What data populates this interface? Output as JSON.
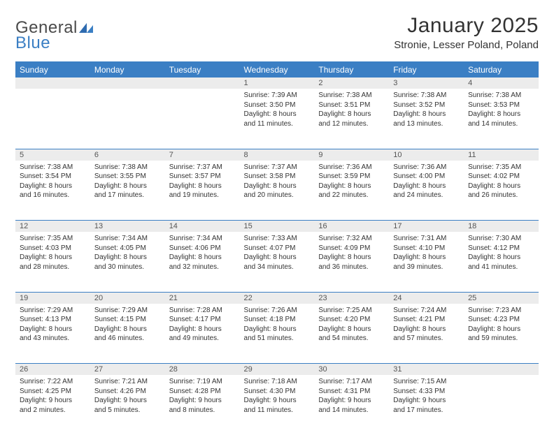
{
  "logo": {
    "part1": "General",
    "part2": "Blue"
  },
  "title": "January 2025",
  "location": "Stronie, Lesser Poland, Poland",
  "colors": {
    "header_bg": "#3b7fc4",
    "header_text": "#ffffff",
    "daynum_bg": "#ececec",
    "border": "#3b7fc4",
    "text": "#333333",
    "page_bg": "#ffffff"
  },
  "fonts": {
    "base": "Arial",
    "title_size": 30,
    "location_size": 15,
    "dayhdr_size": 12,
    "body_size": 10
  },
  "day_headers": [
    "Sunday",
    "Monday",
    "Tuesday",
    "Wednesday",
    "Thursday",
    "Friday",
    "Saturday"
  ],
  "weeks": [
    [
      null,
      null,
      null,
      {
        "n": "1",
        "sunrise": "7:39 AM",
        "sunset": "3:50 PM",
        "dl1": "Daylight: 8 hours",
        "dl2": "and 11 minutes."
      },
      {
        "n": "2",
        "sunrise": "7:38 AM",
        "sunset": "3:51 PM",
        "dl1": "Daylight: 8 hours",
        "dl2": "and 12 minutes."
      },
      {
        "n": "3",
        "sunrise": "7:38 AM",
        "sunset": "3:52 PM",
        "dl1": "Daylight: 8 hours",
        "dl2": "and 13 minutes."
      },
      {
        "n": "4",
        "sunrise": "7:38 AM",
        "sunset": "3:53 PM",
        "dl1": "Daylight: 8 hours",
        "dl2": "and 14 minutes."
      }
    ],
    [
      {
        "n": "5",
        "sunrise": "7:38 AM",
        "sunset": "3:54 PM",
        "dl1": "Daylight: 8 hours",
        "dl2": "and 16 minutes."
      },
      {
        "n": "6",
        "sunrise": "7:38 AM",
        "sunset": "3:55 PM",
        "dl1": "Daylight: 8 hours",
        "dl2": "and 17 minutes."
      },
      {
        "n": "7",
        "sunrise": "7:37 AM",
        "sunset": "3:57 PM",
        "dl1": "Daylight: 8 hours",
        "dl2": "and 19 minutes."
      },
      {
        "n": "8",
        "sunrise": "7:37 AM",
        "sunset": "3:58 PM",
        "dl1": "Daylight: 8 hours",
        "dl2": "and 20 minutes."
      },
      {
        "n": "9",
        "sunrise": "7:36 AM",
        "sunset": "3:59 PM",
        "dl1": "Daylight: 8 hours",
        "dl2": "and 22 minutes."
      },
      {
        "n": "10",
        "sunrise": "7:36 AM",
        "sunset": "4:00 PM",
        "dl1": "Daylight: 8 hours",
        "dl2": "and 24 minutes."
      },
      {
        "n": "11",
        "sunrise": "7:35 AM",
        "sunset": "4:02 PM",
        "dl1": "Daylight: 8 hours",
        "dl2": "and 26 minutes."
      }
    ],
    [
      {
        "n": "12",
        "sunrise": "7:35 AM",
        "sunset": "4:03 PM",
        "dl1": "Daylight: 8 hours",
        "dl2": "and 28 minutes."
      },
      {
        "n": "13",
        "sunrise": "7:34 AM",
        "sunset": "4:05 PM",
        "dl1": "Daylight: 8 hours",
        "dl2": "and 30 minutes."
      },
      {
        "n": "14",
        "sunrise": "7:34 AM",
        "sunset": "4:06 PM",
        "dl1": "Daylight: 8 hours",
        "dl2": "and 32 minutes."
      },
      {
        "n": "15",
        "sunrise": "7:33 AM",
        "sunset": "4:07 PM",
        "dl1": "Daylight: 8 hours",
        "dl2": "and 34 minutes."
      },
      {
        "n": "16",
        "sunrise": "7:32 AM",
        "sunset": "4:09 PM",
        "dl1": "Daylight: 8 hours",
        "dl2": "and 36 minutes."
      },
      {
        "n": "17",
        "sunrise": "7:31 AM",
        "sunset": "4:10 PM",
        "dl1": "Daylight: 8 hours",
        "dl2": "and 39 minutes."
      },
      {
        "n": "18",
        "sunrise": "7:30 AM",
        "sunset": "4:12 PM",
        "dl1": "Daylight: 8 hours",
        "dl2": "and 41 minutes."
      }
    ],
    [
      {
        "n": "19",
        "sunrise": "7:29 AM",
        "sunset": "4:13 PM",
        "dl1": "Daylight: 8 hours",
        "dl2": "and 43 minutes."
      },
      {
        "n": "20",
        "sunrise": "7:29 AM",
        "sunset": "4:15 PM",
        "dl1": "Daylight: 8 hours",
        "dl2": "and 46 minutes."
      },
      {
        "n": "21",
        "sunrise": "7:28 AM",
        "sunset": "4:17 PM",
        "dl1": "Daylight: 8 hours",
        "dl2": "and 49 minutes."
      },
      {
        "n": "22",
        "sunrise": "7:26 AM",
        "sunset": "4:18 PM",
        "dl1": "Daylight: 8 hours",
        "dl2": "and 51 minutes."
      },
      {
        "n": "23",
        "sunrise": "7:25 AM",
        "sunset": "4:20 PM",
        "dl1": "Daylight: 8 hours",
        "dl2": "and 54 minutes."
      },
      {
        "n": "24",
        "sunrise": "7:24 AM",
        "sunset": "4:21 PM",
        "dl1": "Daylight: 8 hours",
        "dl2": "and 57 minutes."
      },
      {
        "n": "25",
        "sunrise": "7:23 AM",
        "sunset": "4:23 PM",
        "dl1": "Daylight: 8 hours",
        "dl2": "and 59 minutes."
      }
    ],
    [
      {
        "n": "26",
        "sunrise": "7:22 AM",
        "sunset": "4:25 PM",
        "dl1": "Daylight: 9 hours",
        "dl2": "and 2 minutes."
      },
      {
        "n": "27",
        "sunrise": "7:21 AM",
        "sunset": "4:26 PM",
        "dl1": "Daylight: 9 hours",
        "dl2": "and 5 minutes."
      },
      {
        "n": "28",
        "sunrise": "7:19 AM",
        "sunset": "4:28 PM",
        "dl1": "Daylight: 9 hours",
        "dl2": "and 8 minutes."
      },
      {
        "n": "29",
        "sunrise": "7:18 AM",
        "sunset": "4:30 PM",
        "dl1": "Daylight: 9 hours",
        "dl2": "and 11 minutes."
      },
      {
        "n": "30",
        "sunrise": "7:17 AM",
        "sunset": "4:31 PM",
        "dl1": "Daylight: 9 hours",
        "dl2": "and 14 minutes."
      },
      {
        "n": "31",
        "sunrise": "7:15 AM",
        "sunset": "4:33 PM",
        "dl1": "Daylight: 9 hours",
        "dl2": "and 17 minutes."
      },
      null
    ]
  ],
  "labels": {
    "sunrise_prefix": "Sunrise: ",
    "sunset_prefix": "Sunset: "
  }
}
